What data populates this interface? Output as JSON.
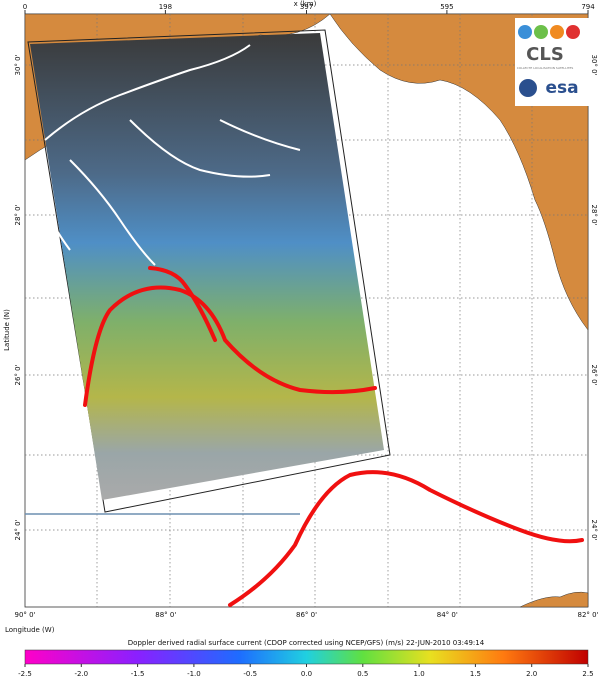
{
  "map": {
    "x_axis": {
      "label": "x (km)",
      "ticks": [
        0,
        198,
        397,
        595,
        794
      ],
      "lim": [
        0,
        794
      ]
    },
    "latitude": {
      "label": "Latitude (N)",
      "ticks": [
        "30° 0'",
        "28° 0'",
        "26° 0'",
        "24° 0'"
      ]
    },
    "longitude": {
      "label": "Longitude (W)",
      "ticks": [
        "90° 0'",
        "88° 0'",
        "86° 0'",
        "84° 0'",
        "82° 0'"
      ]
    },
    "logos": {
      "cls": "CLS",
      "cls_sub": "COLLECTE LOCALISATION SATELLITES",
      "esa": "esa"
    },
    "colorbar": {
      "caption": "Doppler derived radial surface current (CDOP corrected using NCEP/GFS) (m/s)    22-JUN-2010 03:49:14",
      "lim": [
        -2.5,
        2.5
      ],
      "ticks": [
        -2.5,
        {
          "value": -2,
          "label": "-2.0"
        },
        -1.5,
        {
          "value": -1,
          "label": "-1.0"
        },
        -0.5,
        {
          "value": 0,
          "label": "0.0"
        },
        0.5,
        {
          "value": 1,
          "label": "1.0"
        },
        1.5,
        {
          "value": 2,
          "label": "2.0"
        },
        2.5
      ]
    }
  }
}
